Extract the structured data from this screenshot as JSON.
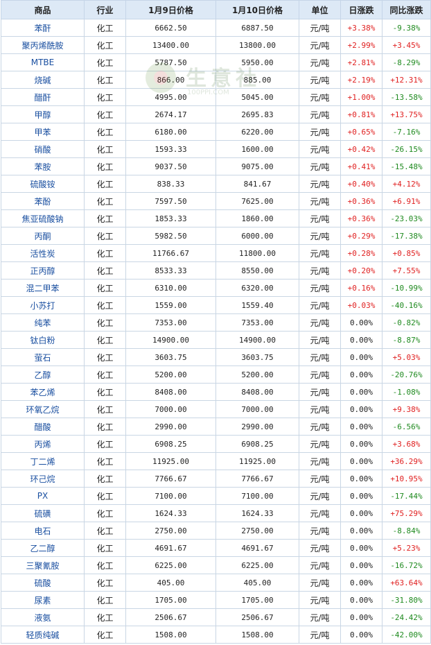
{
  "table": {
    "headers": [
      "商品",
      "行业",
      "1月9日价格",
      "1月10日价格",
      "单位",
      "日涨跌",
      "同比涨跌"
    ],
    "rows": [
      [
        "苯酐",
        "化工",
        "6662.50",
        "6887.50",
        "元/吨",
        "+3.38%",
        "-9.38%"
      ],
      [
        "聚丙烯酰胺",
        "化工",
        "13400.00",
        "13800.00",
        "元/吨",
        "+2.99%",
        "+3.45%"
      ],
      [
        "MTBE",
        "化工",
        "5787.50",
        "5950.00",
        "元/吨",
        "+2.81%",
        "-8.29%"
      ],
      [
        "烧碱",
        "化工",
        "866.00",
        "885.00",
        "元/吨",
        "+2.19%",
        "+12.31%"
      ],
      [
        "醋酐",
        "化工",
        "4995.00",
        "5045.00",
        "元/吨",
        "+1.00%",
        "-13.58%"
      ],
      [
        "甲醇",
        "化工",
        "2674.17",
        "2695.83",
        "元/吨",
        "+0.81%",
        "+13.75%"
      ],
      [
        "甲苯",
        "化工",
        "6180.00",
        "6220.00",
        "元/吨",
        "+0.65%",
        "-7.16%"
      ],
      [
        "硝酸",
        "化工",
        "1593.33",
        "1600.00",
        "元/吨",
        "+0.42%",
        "-26.15%"
      ],
      [
        "苯胺",
        "化工",
        "9037.50",
        "9075.00",
        "元/吨",
        "+0.41%",
        "-15.48%"
      ],
      [
        "硫酸铵",
        "化工",
        "838.33",
        "841.67",
        "元/吨",
        "+0.40%",
        "+4.12%"
      ],
      [
        "苯酚",
        "化工",
        "7597.50",
        "7625.00",
        "元/吨",
        "+0.36%",
        "+6.91%"
      ],
      [
        "焦亚硫酸钠",
        "化工",
        "1853.33",
        "1860.00",
        "元/吨",
        "+0.36%",
        "-23.03%"
      ],
      [
        "丙酮",
        "化工",
        "5982.50",
        "6000.00",
        "元/吨",
        "+0.29%",
        "-17.38%"
      ],
      [
        "活性炭",
        "化工",
        "11766.67",
        "11800.00",
        "元/吨",
        "+0.28%",
        "+0.85%"
      ],
      [
        "正丙醇",
        "化工",
        "8533.33",
        "8550.00",
        "元/吨",
        "+0.20%",
        "+7.55%"
      ],
      [
        "混二甲苯",
        "化工",
        "6310.00",
        "6320.00",
        "元/吨",
        "+0.16%",
        "-10.99%"
      ],
      [
        "小苏打",
        "化工",
        "1559.00",
        "1559.40",
        "元/吨",
        "+0.03%",
        "-40.16%"
      ],
      [
        "纯苯",
        "化工",
        "7353.00",
        "7353.00",
        "元/吨",
        "0.00%",
        "-0.82%"
      ],
      [
        "钛白粉",
        "化工",
        "14900.00",
        "14900.00",
        "元/吨",
        "0.00%",
        "-8.87%"
      ],
      [
        "萤石",
        "化工",
        "3603.75",
        "3603.75",
        "元/吨",
        "0.00%",
        "+5.03%"
      ],
      [
        "乙醇",
        "化工",
        "5200.00",
        "5200.00",
        "元/吨",
        "0.00%",
        "-20.76%"
      ],
      [
        "苯乙烯",
        "化工",
        "8408.00",
        "8408.00",
        "元/吨",
        "0.00%",
        "-1.08%"
      ],
      [
        "环氧乙烷",
        "化工",
        "7000.00",
        "7000.00",
        "元/吨",
        "0.00%",
        "+9.38%"
      ],
      [
        "醋酸",
        "化工",
        "2990.00",
        "2990.00",
        "元/吨",
        "0.00%",
        "-6.56%"
      ],
      [
        "丙烯",
        "化工",
        "6908.25",
        "6908.25",
        "元/吨",
        "0.00%",
        "+3.68%"
      ],
      [
        "丁二烯",
        "化工",
        "11925.00",
        "11925.00",
        "元/吨",
        "0.00%",
        "+36.29%"
      ],
      [
        "环己烷",
        "化工",
        "7766.67",
        "7766.67",
        "元/吨",
        "0.00%",
        "+10.95%"
      ],
      [
        "PX",
        "化工",
        "7100.00",
        "7100.00",
        "元/吨",
        "0.00%",
        "-17.44%"
      ],
      [
        "硫磺",
        "化工",
        "1624.33",
        "1624.33",
        "元/吨",
        "0.00%",
        "+75.29%"
      ],
      [
        "电石",
        "化工",
        "2750.00",
        "2750.00",
        "元/吨",
        "0.00%",
        "-8.84%"
      ],
      [
        "乙二醇",
        "化工",
        "4691.67",
        "4691.67",
        "元/吨",
        "0.00%",
        "+5.23%"
      ],
      [
        "三聚氰胺",
        "化工",
        "6225.00",
        "6225.00",
        "元/吨",
        "0.00%",
        "-16.72%"
      ],
      [
        "硫酸",
        "化工",
        "405.00",
        "405.00",
        "元/吨",
        "0.00%",
        "+63.64%"
      ],
      [
        "尿素",
        "化工",
        "1705.00",
        "1705.00",
        "元/吨",
        "0.00%",
        "-31.80%"
      ],
      [
        "液氨",
        "化工",
        "2506.67",
        "2506.67",
        "元/吨",
        "0.00%",
        "-24.42%"
      ],
      [
        "轻质纯碱",
        "化工",
        "1508.00",
        "1508.00",
        "元/吨",
        "0.00%",
        "-42.00%"
      ]
    ]
  },
  "watermark": {
    "text": "生意社",
    "sub": "100PPI.COM"
  },
  "colors": {
    "up": "#e02020",
    "down": "#1f8a1f",
    "header_bg": "#dde9f6",
    "border": "#c9d6e4",
    "name": "#1a4fa0"
  }
}
